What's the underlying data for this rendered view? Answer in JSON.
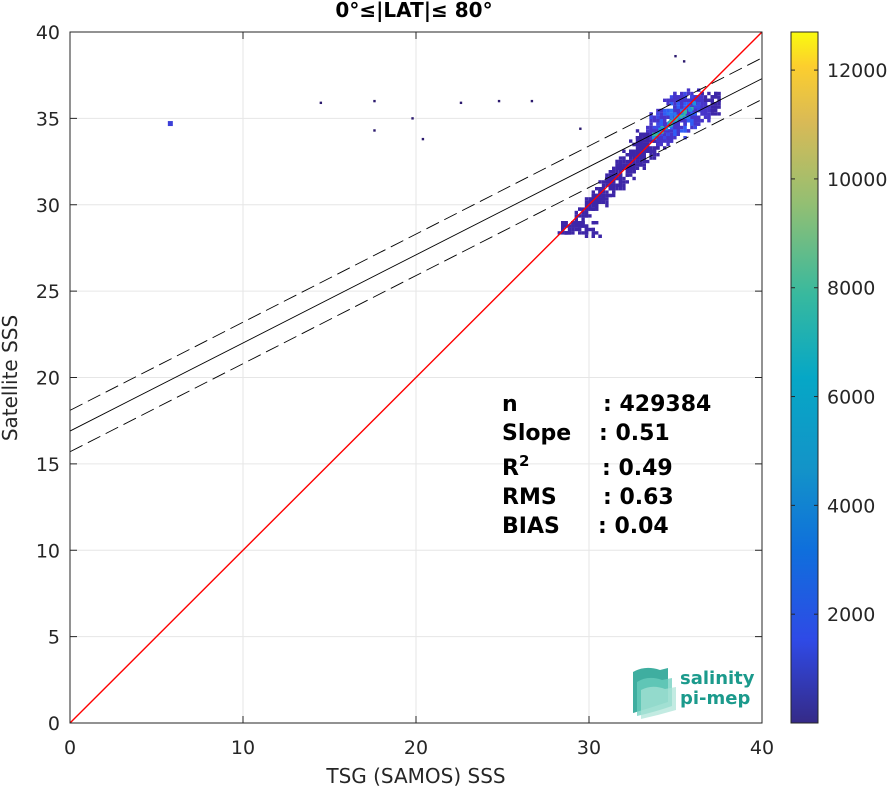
{
  "chart_data": {
    "type": "heatmap",
    "title": "0°≤|LAT|≤ 80°",
    "xlabel": "TSG (SAMOS) SSS",
    "ylabel": "Satellite SSS",
    "xlim": [
      0,
      40
    ],
    "ylim": [
      0,
      40
    ],
    "xticks": [
      "0",
      "10",
      "20",
      "30",
      "40"
    ],
    "yticks": [
      "0",
      "5",
      "10",
      "15",
      "20",
      "25",
      "30",
      "35",
      "40"
    ],
    "grid": true,
    "colorbar": {
      "min": 0,
      "max": 12700,
      "ticks": [
        "2000",
        "4000",
        "6000",
        "8000",
        "10000",
        "12000"
      ],
      "tick_values": [
        2000,
        4000,
        6000,
        8000,
        10000,
        12000
      ],
      "colormap": "parula"
    },
    "lines": {
      "one_to_one": {
        "color": "#ff0000",
        "slope": 1,
        "intercept": 0
      },
      "regression": {
        "color": "#000000",
        "slope": 0.51,
        "intercept": 16.9,
        "style": "solid"
      },
      "upper_bound": {
        "color": "#000000",
        "slope": 0.51,
        "intercept": 18.1,
        "style": "dashed"
      },
      "lower_bound": {
        "color": "#000000",
        "slope": 0.51,
        "intercept": 15.7,
        "style": "dashed"
      }
    },
    "density_cluster": {
      "points_x": [
        28.5,
        29,
        29.5,
        30,
        30.5,
        31,
        31.5,
        32,
        32.5,
        33,
        33.5,
        34,
        34.5,
        35,
        35.5,
        36,
        36.3
      ],
      "points_y": [
        28.6,
        29.0,
        29.4,
        30.0,
        30.4,
        31.0,
        31.6,
        32.1,
        32.7,
        33.2,
        33.7,
        34.2,
        34.6,
        35.1,
        35.5,
        35.9,
        36.1
      ],
      "peak_x": 35.0,
      "peak_y": 35.2
    },
    "outliers": [
      {
        "x": 5.8,
        "y": 34.7
      },
      {
        "x": 14.5,
        "y": 35.9
      },
      {
        "x": 17.6,
        "y": 36.0
      },
      {
        "x": 17.6,
        "y": 34.3
      },
      {
        "x": 19.8,
        "y": 35.0
      },
      {
        "x": 20.4,
        "y": 33.8
      },
      {
        "x": 22.6,
        "y": 35.9
      },
      {
        "x": 24.8,
        "y": 36.0
      },
      {
        "x": 26.7,
        "y": 36.0
      },
      {
        "x": 29.5,
        "y": 34.4
      },
      {
        "x": 35.0,
        "y": 38.6
      },
      {
        "x": 35.5,
        "y": 38.3
      }
    ],
    "stats": [
      {
        "key": "n",
        "value": ": 429384"
      },
      {
        "key": "Slope",
        "value": ": 0.51"
      },
      {
        "key": "R",
        "sup": "2",
        "value": ": 0.49"
      },
      {
        "key": "RMS",
        "value": ": 0.63"
      },
      {
        "key": "BIAS",
        "value": ": 0.04"
      }
    ]
  },
  "logo": {
    "line1": "salinity",
    "line2": "pi-mep"
  }
}
